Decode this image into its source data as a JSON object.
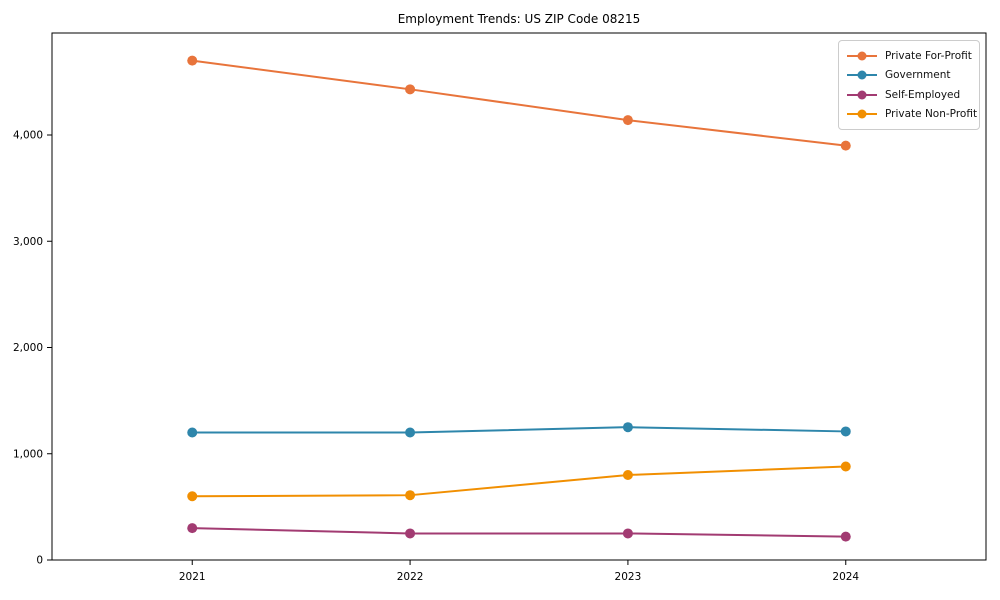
{
  "figure": {
    "background": "#ffffff",
    "axes_edge_color": "#000000",
    "legend_border_color": "#cccccc"
  },
  "chart_data": {
    "type": "line",
    "title": "Employment Trends: US ZIP Code 08215",
    "xlabel": "",
    "ylabel": "",
    "categories": [
      "2021",
      "2022",
      "2023",
      "2024"
    ],
    "series": [
      {
        "name": "Private For-Profit",
        "color": "#E8743B",
        "values": [
          4700,
          4430,
          4140,
          3900
        ]
      },
      {
        "name": "Government",
        "color": "#2E86AB",
        "values": [
          1200,
          1200,
          1250,
          1210
        ]
      },
      {
        "name": "Self-Employed",
        "color": "#A23B72",
        "values": [
          300,
          250,
          250,
          220
        ]
      },
      {
        "name": "Private Non-Profit",
        "color": "#F18F01",
        "values": [
          600,
          610,
          800,
          880
        ]
      }
    ],
    "ylim": [
      0,
      4960
    ],
    "yticks": [
      0,
      1000,
      2000,
      3000,
      4000
    ],
    "ytick_labels": [
      "0",
      "1,000",
      "2,000",
      "3,000",
      "4,000"
    ],
    "grid": false,
    "legend_position": "upper right",
    "marker": "circle"
  }
}
